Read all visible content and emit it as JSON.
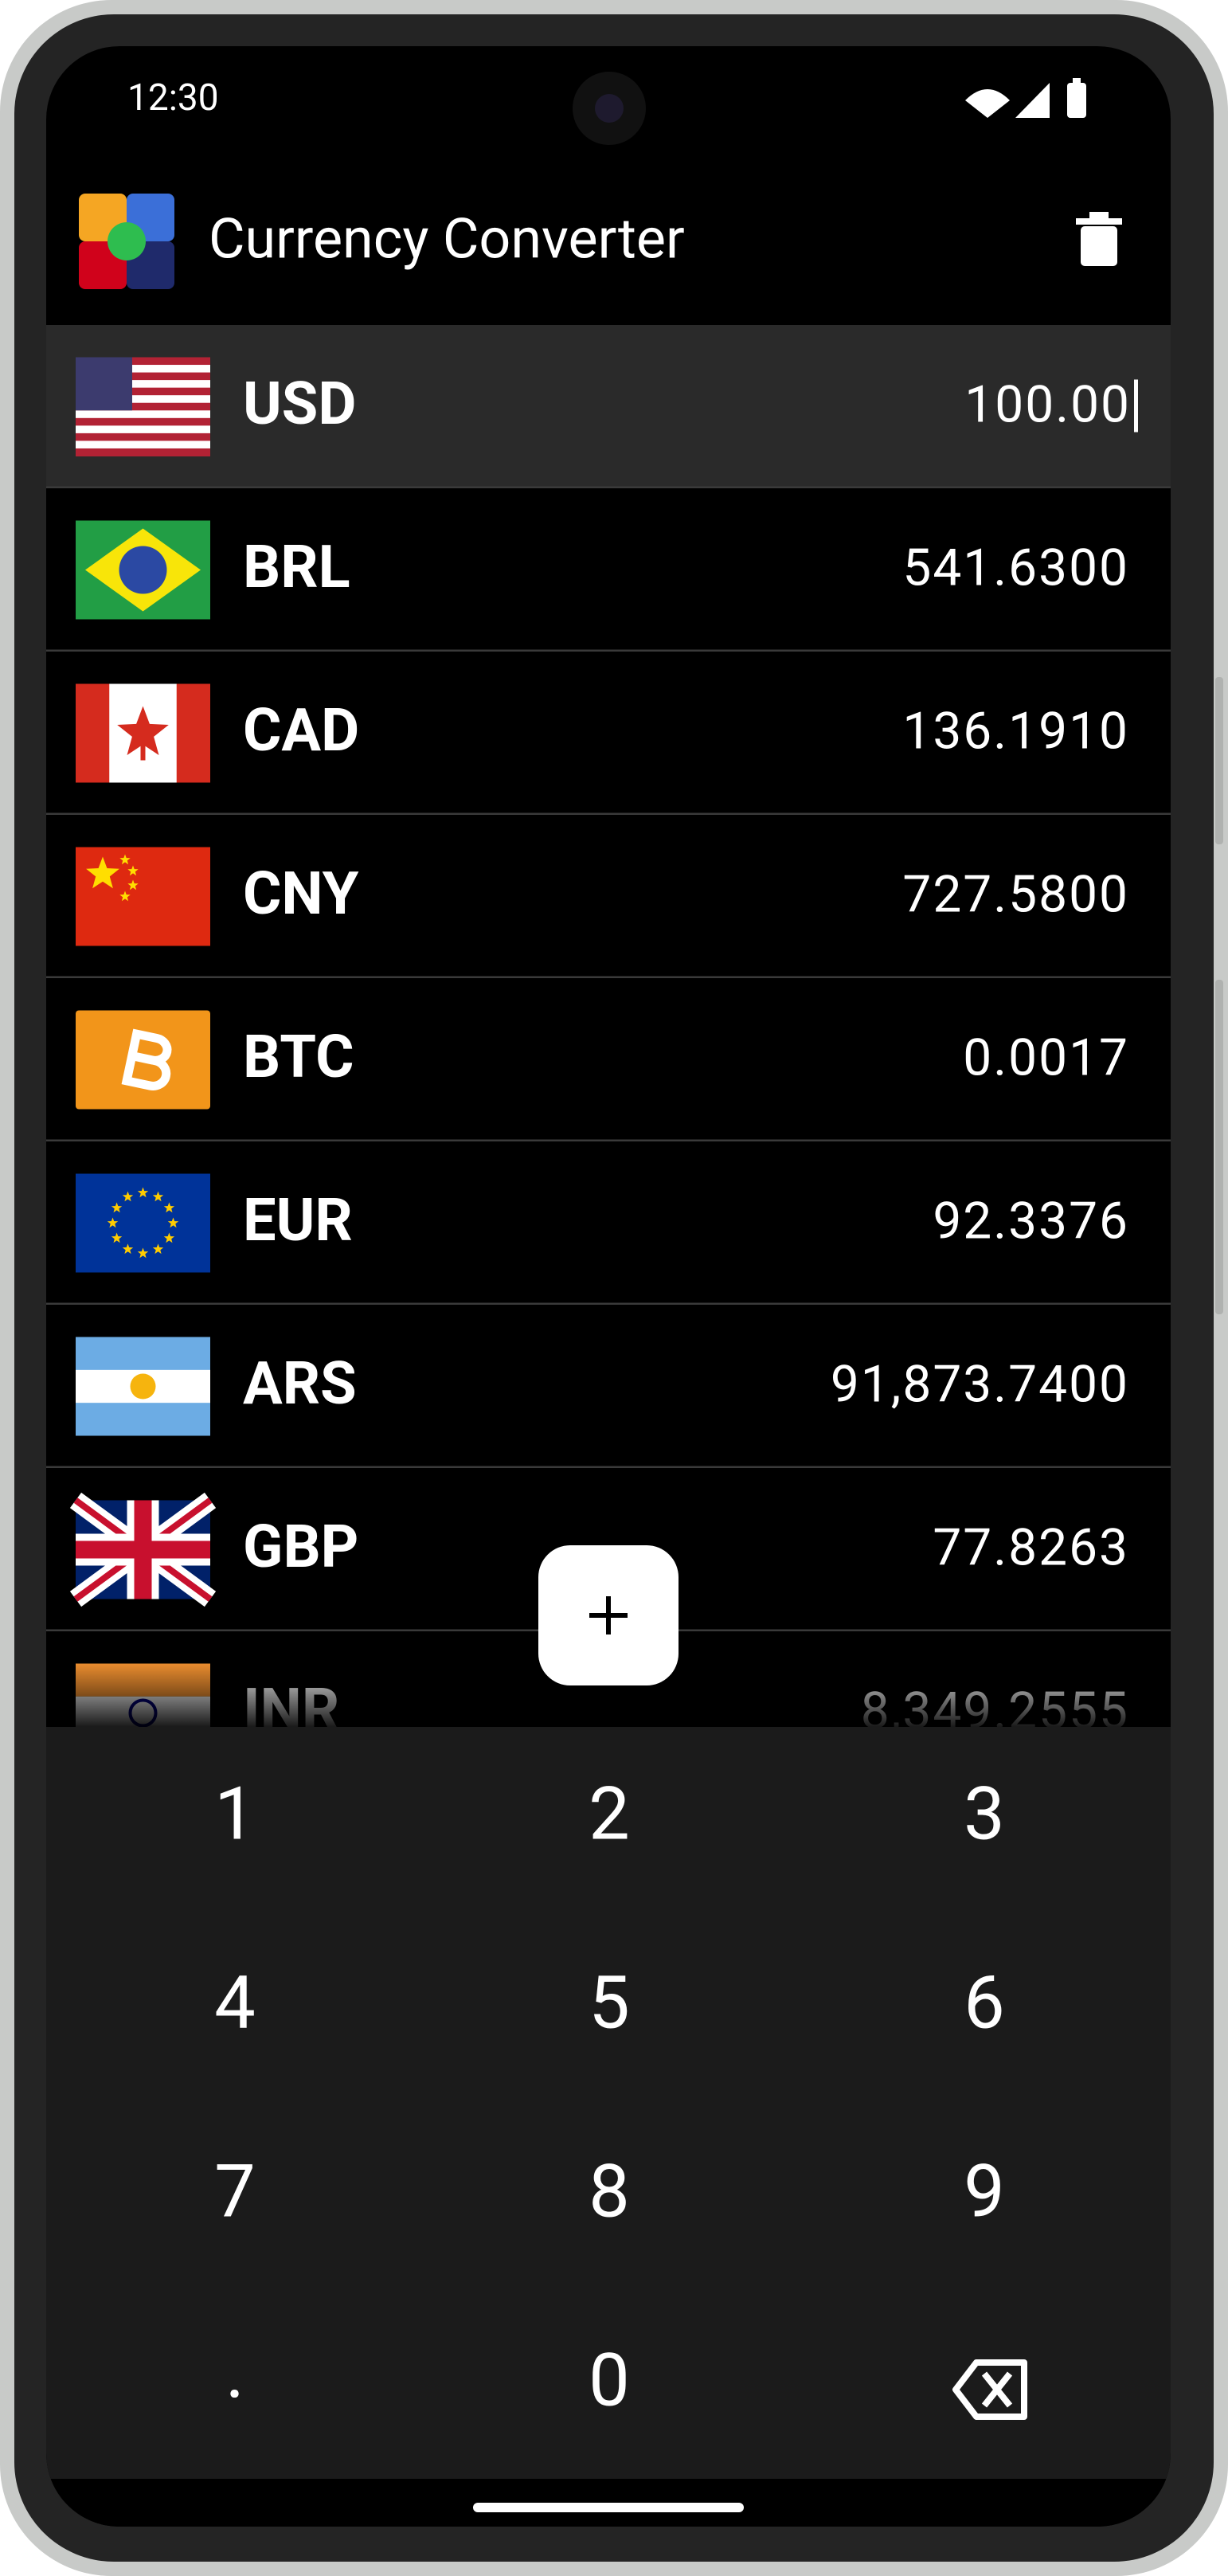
{
  "status": {
    "time": "12:30"
  },
  "app": {
    "title": "Currency Converter"
  },
  "rows": [
    {
      "code": "USD",
      "value": "100.00"
    },
    {
      "code": "BRL",
      "value": "541.6300"
    },
    {
      "code": "CAD",
      "value": "136.1910"
    },
    {
      "code": "CNY",
      "value": "727.5800"
    },
    {
      "code": "BTC",
      "value": "0.0017"
    },
    {
      "code": "EUR",
      "value": "92.3376"
    },
    {
      "code": "ARS",
      "value": "91,873.7400"
    },
    {
      "code": "GBP",
      "value": "77.8263"
    },
    {
      "code": "INR",
      "value": "8,349.2555"
    }
  ],
  "keypad": [
    "1",
    "2",
    "3",
    "4",
    "5",
    "6",
    "7",
    "8",
    "9",
    ".",
    "0"
  ]
}
